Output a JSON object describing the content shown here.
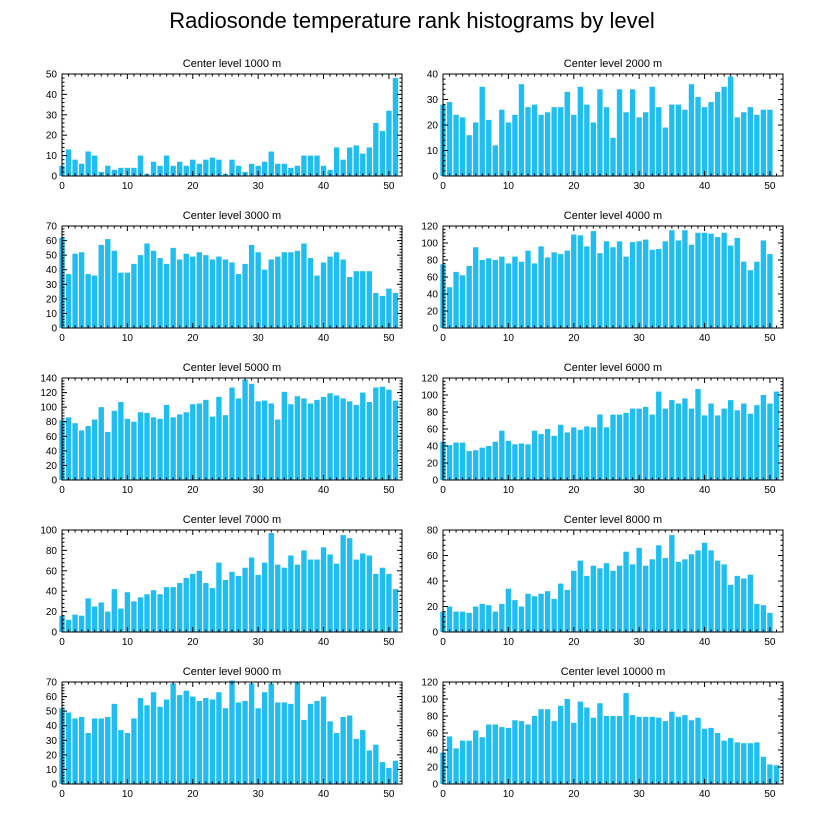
{
  "title": "Radiosonde temperature rank histograms by level",
  "bar_color": "#1fbdf0",
  "chart_data": [
    {
      "type": "bar",
      "title": "Center level 1000 m",
      "ylim": [
        0,
        50
      ],
      "yticks": [
        0,
        10,
        20,
        30,
        40,
        50
      ],
      "xlim": [
        0,
        52
      ],
      "xticks": [
        0,
        10,
        20,
        30,
        40,
        50
      ],
      "values": [
        5,
        13,
        8,
        6,
        12,
        10,
        2,
        5,
        3,
        4,
        4,
        4,
        10,
        1,
        7,
        5,
        10,
        5,
        7,
        5,
        8,
        6,
        8,
        9,
        8,
        1,
        8,
        5,
        2,
        6,
        5,
        7,
        12,
        6,
        6,
        4,
        5,
        10,
        10,
        10,
        5,
        3,
        14,
        8,
        14,
        15,
        11,
        14,
        26,
        22,
        32,
        48
      ]
    },
    {
      "type": "bar",
      "title": "Center level 2000 m",
      "ylim": [
        0,
        40
      ],
      "yticks": [
        0,
        10,
        20,
        30,
        40
      ],
      "xlim": [
        0,
        52
      ],
      "xticks": [
        0,
        10,
        20,
        30,
        40,
        50
      ],
      "values": [
        28,
        29,
        24,
        23,
        16,
        21,
        35,
        22,
        12,
        26,
        21,
        24,
        36,
        27,
        28,
        24,
        25,
        27,
        27,
        33,
        24,
        35,
        28,
        21,
        34,
        27,
        15,
        34,
        25,
        34,
        23,
        25,
        35,
        27,
        19,
        28,
        28,
        26,
        36,
        31,
        27,
        29,
        33,
        35,
        39,
        23,
        25,
        27,
        24,
        26,
        26
      ]
    },
    {
      "type": "bar",
      "title": "Center level 3000 m",
      "ylim": [
        0,
        70
      ],
      "yticks": [
        0,
        10,
        20,
        30,
        40,
        50,
        60,
        70
      ],
      "xlim": [
        0,
        52
      ],
      "xticks": [
        0,
        10,
        20,
        30,
        40,
        50
      ],
      "values": [
        62,
        37,
        51,
        52,
        37,
        36,
        57,
        61,
        53,
        38,
        38,
        44,
        50,
        58,
        53,
        48,
        44,
        55,
        47,
        51,
        49,
        52,
        50,
        47,
        49,
        47,
        45,
        37,
        44,
        57,
        52,
        40,
        47,
        49,
        52,
        52,
        53,
        58,
        48,
        36,
        45,
        49,
        52,
        47,
        35,
        39,
        39,
        39,
        24,
        22,
        27,
        24
      ]
    },
    {
      "type": "bar",
      "title": "Center level 4000 m",
      "ylim": [
        0,
        120
      ],
      "yticks": [
        0,
        20,
        40,
        60,
        80,
        100,
        120
      ],
      "xlim": [
        0,
        52
      ],
      "xticks": [
        0,
        10,
        20,
        30,
        40,
        50
      ],
      "values": [
        75,
        48,
        66,
        62,
        73,
        95,
        80,
        82,
        80,
        84,
        76,
        84,
        78,
        91,
        76,
        96,
        83,
        89,
        87,
        91,
        110,
        109,
        96,
        114,
        88,
        102,
        95,
        102,
        84,
        101,
        102,
        104,
        92,
        93,
        102,
        115,
        103,
        115,
        98,
        112,
        112,
        111,
        107,
        112,
        97,
        106,
        78,
        68,
        78,
        103,
        87
      ]
    },
    {
      "type": "bar",
      "title": "Center level 5000 m",
      "ylim": [
        0,
        140
      ],
      "yticks": [
        0,
        20,
        40,
        60,
        80,
        100,
        120,
        140
      ],
      "xlim": [
        0,
        52
      ],
      "xticks": [
        0,
        10,
        20,
        30,
        40,
        50
      ],
      "values": [
        82,
        86,
        78,
        68,
        74,
        83,
        100,
        66,
        95,
        107,
        84,
        80,
        93,
        92,
        86,
        84,
        103,
        86,
        90,
        93,
        104,
        105,
        110,
        87,
        114,
        89,
        127,
        112,
        138,
        132,
        108,
        109,
        105,
        83,
        121,
        104,
        115,
        112,
        105,
        110,
        114,
        119,
        116,
        112,
        108,
        103,
        120,
        107,
        127,
        128,
        124,
        109
      ]
    },
    {
      "type": "bar",
      "title": "Center level 6000 m",
      "ylim": [
        0,
        120
      ],
      "yticks": [
        0,
        20,
        40,
        60,
        80,
        100,
        120
      ],
      "xlim": [
        0,
        52
      ],
      "xticks": [
        0,
        10,
        20,
        30,
        40,
        50
      ],
      "values": [
        45,
        41,
        44,
        44,
        34,
        35,
        38,
        40,
        45,
        58,
        46,
        42,
        43,
        42,
        58,
        54,
        60,
        52,
        65,
        56,
        62,
        59,
        63,
        62,
        77,
        62,
        77,
        77,
        79,
        84,
        84,
        86,
        77,
        104,
        84,
        94,
        90,
        96,
        84,
        107,
        76,
        90,
        76,
        84,
        94,
        82,
        90,
        78,
        88,
        100,
        90,
        104
      ]
    },
    {
      "type": "bar",
      "title": "Center level 7000 m",
      "ylim": [
        0,
        100
      ],
      "yticks": [
        0,
        20,
        40,
        60,
        80,
        100
      ],
      "xlim": [
        0,
        52
      ],
      "xticks": [
        0,
        10,
        20,
        30,
        40,
        50
      ],
      "values": [
        16,
        12,
        17,
        16,
        33,
        25,
        29,
        20,
        42,
        23,
        39,
        30,
        34,
        37,
        41,
        37,
        44,
        44,
        48,
        53,
        57,
        60,
        48,
        43,
        68,
        51,
        59,
        55,
        63,
        73,
        56,
        68,
        97,
        66,
        63,
        75,
        66,
        80,
        71,
        71,
        83,
        76,
        67,
        95,
        92,
        71,
        77,
        75,
        57,
        63,
        57,
        42
      ]
    },
    {
      "type": "bar",
      "title": "Center level 8000 m",
      "ylim": [
        0,
        80
      ],
      "yticks": [
        0,
        20,
        40,
        60,
        80
      ],
      "xlim": [
        0,
        52
      ],
      "xticks": [
        0,
        10,
        20,
        30,
        40,
        50
      ],
      "values": [
        16,
        20,
        16,
        16,
        15,
        20,
        22,
        21,
        16,
        22,
        34,
        25,
        20,
        30,
        28,
        30,
        32,
        26,
        38,
        33,
        48,
        56,
        44,
        52,
        50,
        54,
        48,
        52,
        63,
        53,
        66,
        52,
        57,
        68,
        58,
        76,
        55,
        57,
        61,
        64,
        70,
        64,
        56,
        53,
        37,
        44,
        42,
        45,
        22,
        21,
        15
      ]
    },
    {
      "type": "bar",
      "title": "Center level 9000 m",
      "ylim": [
        0,
        70
      ],
      "yticks": [
        0,
        10,
        20,
        30,
        40,
        50,
        60,
        70
      ],
      "xlim": [
        0,
        52
      ],
      "xticks": [
        0,
        10,
        20,
        30,
        40,
        50
      ],
      "values": [
        52,
        49,
        45,
        46,
        35,
        45,
        45,
        46,
        55,
        37,
        35,
        45,
        59,
        54,
        63,
        53,
        58,
        69,
        61,
        64,
        60,
        57,
        59,
        58,
        63,
        52,
        71,
        56,
        57,
        69,
        52,
        63,
        69,
        56,
        56,
        55,
        70,
        44,
        55,
        57,
        60,
        43,
        35,
        46,
        47,
        31,
        37,
        23,
        27,
        15,
        11,
        16
      ]
    },
    {
      "type": "bar",
      "title": "Center level 10000 m",
      "ylim": [
        0,
        120
      ],
      "yticks": [
        0,
        20,
        40,
        60,
        80,
        100,
        120
      ],
      "xlim": [
        0,
        52
      ],
      "xticks": [
        0,
        10,
        20,
        30,
        40,
        50
      ],
      "values": [
        37,
        56,
        42,
        51,
        51,
        63,
        55,
        70,
        70,
        67,
        66,
        75,
        74,
        70,
        80,
        88,
        88,
        74,
        92,
        100,
        72,
        97,
        90,
        78,
        95,
        80,
        80,
        80,
        107,
        81,
        79,
        79,
        79,
        78,
        74,
        85,
        79,
        81,
        75,
        78,
        65,
        66,
        60,
        51,
        54,
        49,
        48,
        48,
        49,
        32,
        23,
        22
      ]
    }
  ]
}
